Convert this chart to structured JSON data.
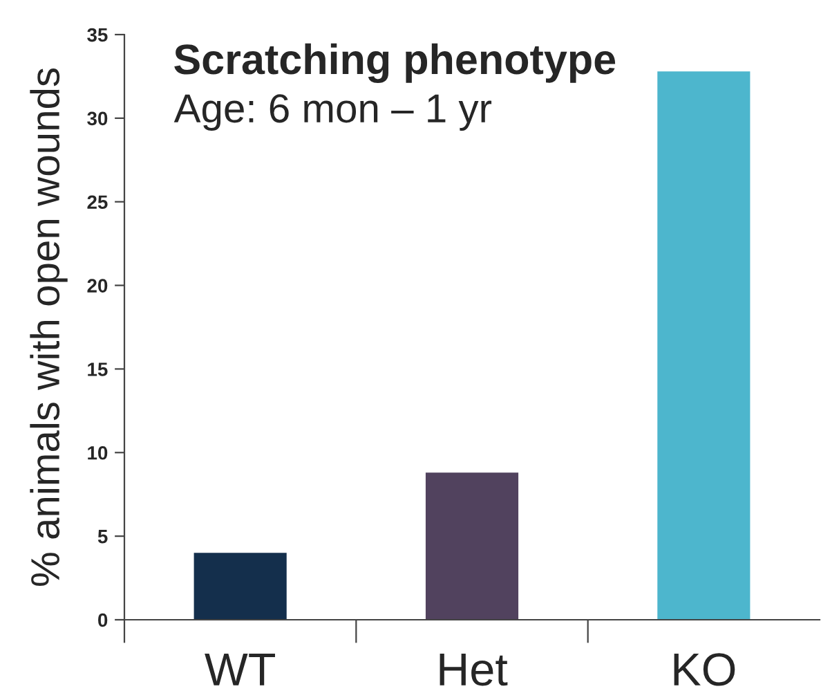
{
  "chart_data": {
    "type": "bar",
    "title": "Scratching phenotype",
    "subtitle": "Age: 6 mon – 1 yr",
    "ylabel": "% animals with open wounds",
    "categories": [
      "WT",
      "Het",
      "KO"
    ],
    "values": [
      4.0,
      8.8,
      32.8
    ],
    "colors": [
      "#142f4c",
      "#51425e",
      "#4db6cd"
    ],
    "ylim": [
      0,
      35
    ],
    "yticks": [
      0,
      5,
      10,
      15,
      20,
      25,
      30,
      35
    ],
    "grid": false,
    "legend": false
  }
}
